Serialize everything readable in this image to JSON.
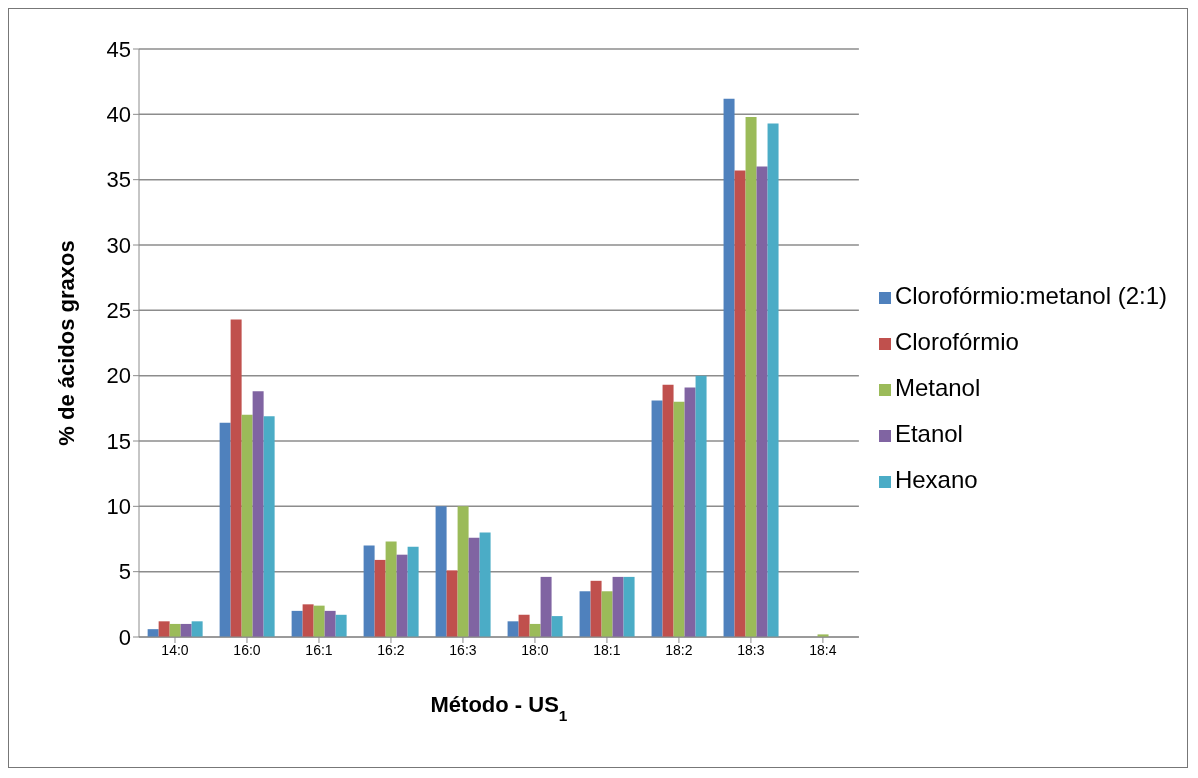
{
  "chart_data": {
    "type": "bar",
    "xlabel": "Método - US$_{1}$",
    "ylabel": "% de ácidos graxos",
    "categories": [
      "14:0",
      "16:0",
      "16:1",
      "16:2",
      "16:3",
      "18:0",
      "18:1",
      "18:2",
      "18:3",
      "18:4"
    ],
    "series": [
      {
        "name": "Clorofórmio:metanol (2:1)",
        "color": "#4f81bd",
        "values": [
          0.6,
          16.4,
          2.0,
          7.0,
          10.0,
          1.2,
          3.5,
          18.1,
          41.2,
          0
        ]
      },
      {
        "name": "Clorofórmio",
        "color": "#c0504d",
        "values": [
          1.2,
          24.3,
          2.5,
          5.9,
          5.1,
          1.7,
          4.3,
          19.3,
          35.7,
          0
        ]
      },
      {
        "name": "Metanol",
        "color": "#9bbb59",
        "values": [
          1.0,
          17.0,
          2.4,
          7.3,
          10.0,
          1.0,
          3.5,
          18.0,
          39.8,
          0.2
        ]
      },
      {
        "name": "Etanol",
        "color": "#8064a2",
        "values": [
          1.0,
          18.8,
          2.0,
          6.3,
          7.6,
          4.6,
          4.6,
          19.1,
          36.0,
          0
        ]
      },
      {
        "name": "Hexano",
        "color": "#4bacc6",
        "values": [
          1.2,
          16.9,
          1.7,
          6.9,
          8.0,
          1.6,
          4.6,
          20.0,
          39.3,
          0
        ]
      }
    ],
    "ylim": [
      0,
      45
    ],
    "yticks": [
      0,
      5,
      10,
      15,
      20,
      25,
      30,
      35,
      40,
      45
    ],
    "grid": "y",
    "legend": "right"
  }
}
